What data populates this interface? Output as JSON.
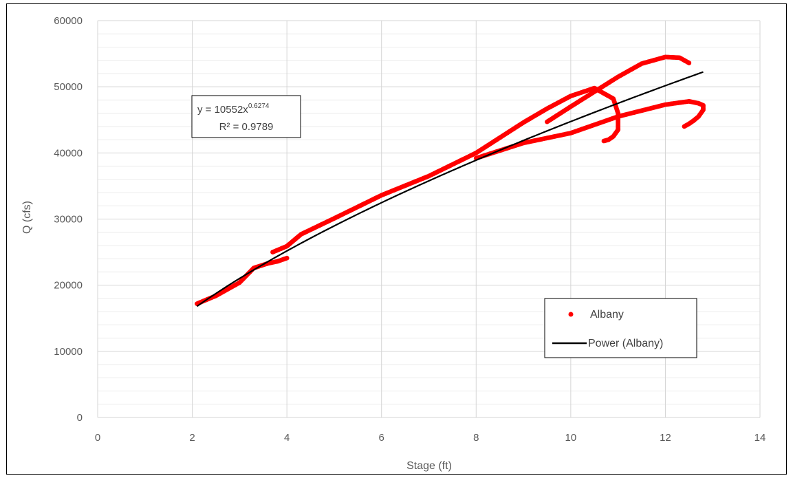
{
  "chart_data": {
    "type": "scatter",
    "title": "",
    "xlabel": "Stage (ft)",
    "ylabel": "Q (cfs)",
    "xlim": [
      0,
      14
    ],
    "ylim": [
      0,
      60000
    ],
    "x_ticks": [
      0,
      2,
      4,
      6,
      8,
      10,
      12,
      14
    ],
    "y_ticks": [
      0,
      10000,
      20000,
      30000,
      40000,
      50000,
      60000
    ],
    "x_tick_labels": [
      "0",
      "2",
      "4",
      "6",
      "8",
      "10",
      "12",
      "14"
    ],
    "y_tick_labels": [
      "0",
      "10000",
      "20000",
      "30000",
      "40000",
      "50000",
      "60000"
    ],
    "grid": true,
    "minor_y_grid_step": 2000,
    "legend_position": "bottom-right",
    "series": [
      {
        "name": "Albany",
        "kind": "scatter",
        "color": "#ff0000",
        "segments": [
          {
            "x": [
              2.1,
              2.5,
              3.0,
              3.3,
              3.6,
              3.8,
              4.0
            ],
            "y": [
              17200,
              18400,
              20400,
              22600,
              23300,
              23600,
              24100
            ]
          },
          {
            "x": [
              3.7,
              4.0,
              4.3,
              5.0,
              6.0,
              7.0,
              8.0,
              9.0,
              9.5,
              10.0,
              10.5,
              10.9,
              11.0,
              11.0,
              11.0,
              10.9,
              10.8,
              10.7
            ],
            "y": [
              25000,
              25900,
              27700,
              30100,
              33600,
              36500,
              40000,
              44600,
              46700,
              48600,
              49800,
              48200,
              46000,
              44500,
              43500,
              42500,
              42000,
              41800
            ]
          },
          {
            "x": [
              8.0,
              9.0,
              10.0,
              11.0,
              12.0,
              12.5,
              12.7,
              12.8,
              12.8,
              12.7,
              12.6,
              12.5,
              12.4
            ],
            "y": [
              39200,
              41500,
              43000,
              45500,
              47300,
              47800,
              47500,
              47200,
              46500,
              45500,
              44900,
              44400,
              44000
            ]
          },
          {
            "x": [
              9.5,
              10.0,
              11.0,
              11.5,
              12.0,
              12.3,
              12.5
            ],
            "y": [
              44700,
              47000,
              51500,
              53500,
              54500,
              54400,
              53600
            ]
          }
        ]
      },
      {
        "name": "Power (Albany)",
        "kind": "line",
        "color": "#000000",
        "fit": {
          "a": 10552,
          "b": 0.6274,
          "x_range": [
            2.1,
            12.8
          ]
        }
      }
    ],
    "annotations": {
      "equation_base": "y = 10552x",
      "equation_exponent": "0.6274",
      "r_squared": "R² = 0.9789"
    }
  }
}
